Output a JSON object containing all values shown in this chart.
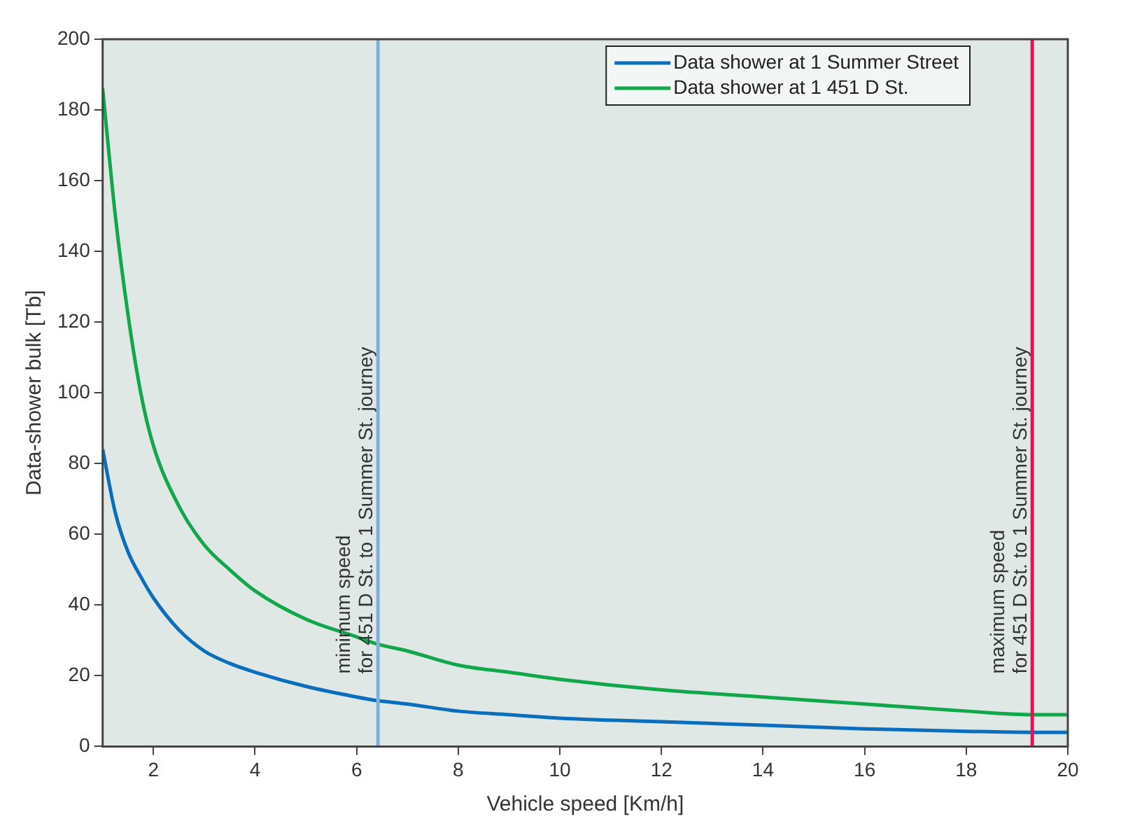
{
  "chart_data": {
    "type": "line",
    "xlabel": "Vehicle speed [Km/h]",
    "ylabel": "Data-shower bulk [Tb]",
    "xlim": [
      1,
      20
    ],
    "xticks": [
      2,
      4,
      6,
      8,
      10,
      12,
      14,
      16,
      18,
      20
    ],
    "ylim": [
      0,
      200
    ],
    "yticks": [
      0,
      20,
      40,
      60,
      80,
      100,
      120,
      140,
      160,
      180,
      200
    ],
    "grid": false,
    "legend": "top right",
    "marker": "none",
    "line_style": "solid",
    "series": [
      {
        "name": "Data shower at 1 Summer Street",
        "color": "#0a6ebd",
        "x": [
          1,
          1.25,
          1.5,
          1.75,
          2,
          2.5,
          3,
          3.5,
          4,
          5,
          6,
          6.4,
          7,
          8,
          9,
          10,
          12,
          14,
          16,
          18,
          19.3,
          20
        ],
        "values": [
          84,
          66,
          55,
          48,
          42,
          33,
          27,
          23.5,
          21,
          17,
          14,
          13,
          12,
          10,
          9,
          8,
          7,
          6,
          5,
          4.3,
          4,
          4
        ]
      },
      {
        "name": "Data shower at 1 451 D St.",
        "color": "#10a84a",
        "x": [
          1,
          1.25,
          1.5,
          1.75,
          2,
          2.5,
          3,
          3.5,
          4,
          5,
          6,
          6.4,
          7,
          8,
          9,
          10,
          12,
          14,
          16,
          18,
          19.3,
          20
        ],
        "values": [
          186,
          150,
          122,
          100,
          85,
          68,
          57,
          50,
          44,
          36,
          31,
          29,
          27,
          23,
          21,
          19,
          16,
          14,
          12,
          10,
          9,
          9
        ]
      }
    ],
    "ref_lines": [
      {
        "axis": "x",
        "value": 6.42,
        "label": "minimum speed\nfor 451 D St. to 1 Summer St. journey",
        "color": "#80b0e0"
      },
      {
        "axis": "x",
        "value": 19.3,
        "label": "maximum speed\nfor 451 D St. to 1 Summer St. journey",
        "color": "#e8105a"
      }
    ]
  }
}
